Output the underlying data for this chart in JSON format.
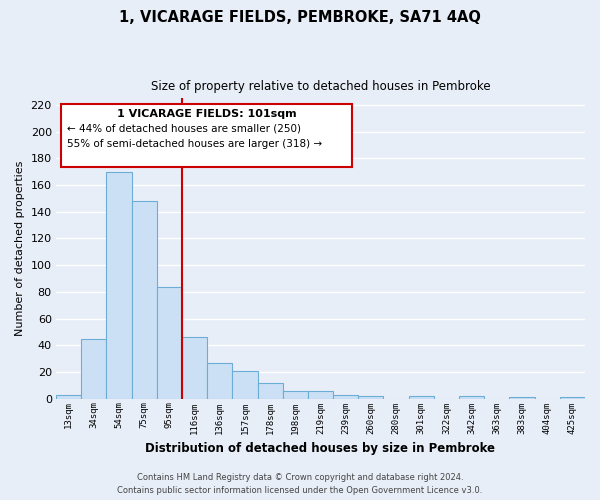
{
  "title": "1, VICARAGE FIELDS, PEMBROKE, SA71 4AQ",
  "subtitle": "Size of property relative to detached houses in Pembroke",
  "xlabel": "Distribution of detached houses by size in Pembroke",
  "ylabel": "Number of detached properties",
  "bar_labels": [
    "13sqm",
    "34sqm",
    "54sqm",
    "75sqm",
    "95sqm",
    "116sqm",
    "136sqm",
    "157sqm",
    "178sqm",
    "198sqm",
    "219sqm",
    "239sqm",
    "260sqm",
    "280sqm",
    "301sqm",
    "322sqm",
    "342sqm",
    "363sqm",
    "383sqm",
    "404sqm",
    "425sqm"
  ],
  "bar_values": [
    3,
    45,
    170,
    148,
    84,
    46,
    27,
    21,
    12,
    6,
    6,
    3,
    2,
    0,
    2,
    0,
    2,
    0,
    1,
    0,
    1
  ],
  "bar_face_color": "#cce0f5",
  "bar_edge_color": "#6aaed6",
  "vline_color": "#cc0000",
  "ylim": [
    0,
    225
  ],
  "yticks": [
    0,
    20,
    40,
    60,
    80,
    100,
    120,
    140,
    160,
    180,
    200,
    220
  ],
  "annotation_title": "1 VICARAGE FIELDS: 101sqm",
  "annotation_line1": "← 44% of detached houses are smaller (250)",
  "annotation_line2": "55% of semi-detached houses are larger (318) →",
  "annotation_box_color": "#cc0000",
  "footer_line1": "Contains HM Land Registry data © Crown copyright and database right 2024.",
  "footer_line2": "Contains public sector information licensed under the Open Government Licence v3.0.",
  "fig_bg_color": "#e8eef8",
  "plot_bg_color": "#e8eef8",
  "grid_color": "#ffffff",
  "vline_x_index": 4.5
}
